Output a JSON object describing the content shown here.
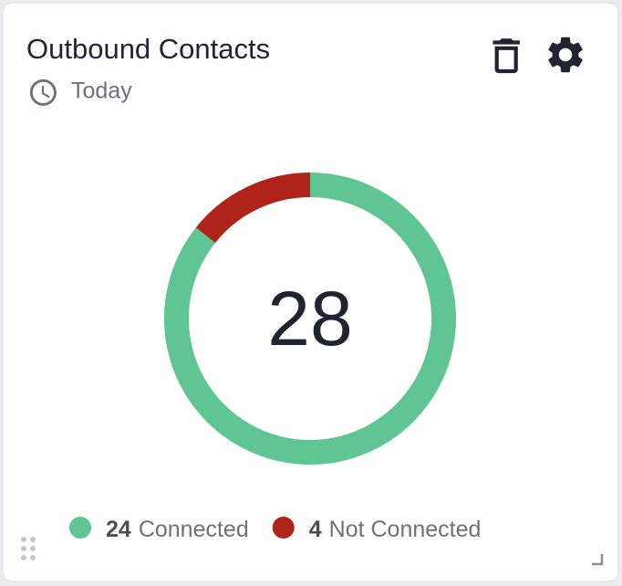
{
  "chart_data": {
    "type": "donut",
    "title": "Outbound Contacts",
    "subtitle": "Today",
    "total": 28,
    "categories": [
      "Connected",
      "Not Connected"
    ],
    "values": [
      24,
      4
    ],
    "colors": [
      "#5ec593",
      "#ae2418"
    ]
  }
}
